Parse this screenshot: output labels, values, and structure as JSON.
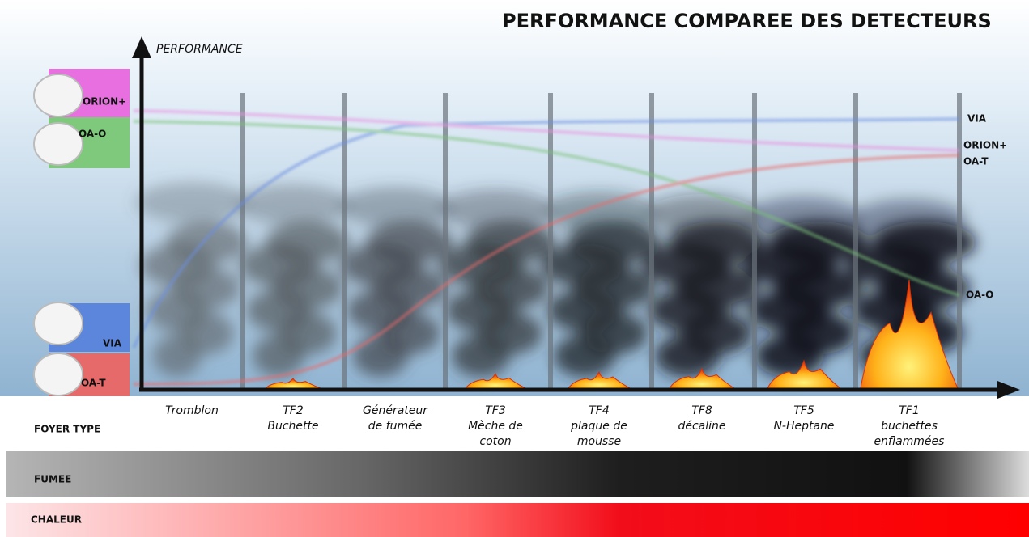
{
  "header": {
    "title": "PERFORMANCE COMPAREE DES DETECTEURS",
    "axis_label": "PERFORMANCE"
  },
  "detectors_left": [
    "ORION+",
    "OA-O",
    "VIA",
    "OA-T"
  ],
  "curve_labels": [
    "VIA",
    "ORION+",
    "OA-T",
    "OA-O"
  ],
  "fire_types": [
    [
      "Tromblon"
    ],
    [
      "TF2",
      "Buchette"
    ],
    [
      "Générateur",
      "de fumée"
    ],
    [
      "TF3",
      "Mèche de",
      "coton"
    ],
    [
      "TF4",
      "plaque de",
      "mousse"
    ],
    [
      "TF8",
      "décaline"
    ],
    [
      "TF5",
      "N-Heptane"
    ],
    [
      "TF1",
      "buchettes",
      "enflammées"
    ]
  ],
  "rows": {
    "foyer": "FOYER TYPE",
    "fumee": "FUMEE",
    "chaleur": "CHALEUR"
  }
}
